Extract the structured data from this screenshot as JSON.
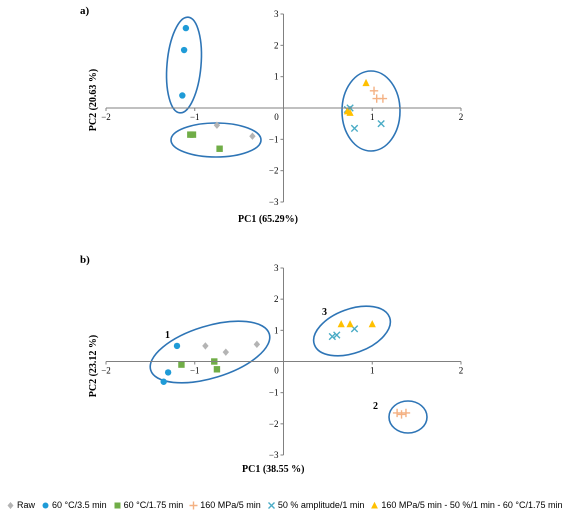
{
  "chart_data": [
    {
      "type": "scatter",
      "panel_label": "a)",
      "xlabel": "PC1 (65.29%)",
      "ylabel": "PC2 (20.63 %)",
      "xlim": [
        -2,
        2
      ],
      "ylim": [
        -3,
        3
      ],
      "x_ticks": [
        "−2",
        "−1",
        "0",
        "1",
        "2"
      ],
      "y_ticks": [
        "3",
        "2",
        "1",
        "0",
        "−1",
        "−2",
        "−3"
      ],
      "series": [
        {
          "name": "Raw",
          "marker": "diamond",
          "color": "#b4b4b4",
          "points": [
            [
              -0.75,
              -0.55
            ],
            [
              -0.35,
              -0.9
            ]
          ]
        },
        {
          "name": "60 °C/3.5 min",
          "marker": "circle",
          "color": "#1f9bd7",
          "points": [
            [
              -1.1,
              2.55
            ],
            [
              -1.12,
              1.85
            ],
            [
              -1.14,
              0.4
            ]
          ]
        },
        {
          "name": "60 °C/1.75 min",
          "marker": "square",
          "color": "#70ad47",
          "points": [
            [
              -1.05,
              -0.85
            ],
            [
              -1.02,
              -0.85
            ],
            [
              -0.72,
              -1.3
            ]
          ]
        },
        {
          "name": "160 MPa/5 min",
          "marker": "plus",
          "color": "#f4b183",
          "points": [
            [
              1.02,
              0.55
            ],
            [
              1.05,
              0.3
            ],
            [
              1.12,
              0.3
            ]
          ]
        },
        {
          "name": "50 % amplitude/1 min",
          "marker": "x",
          "color": "#4bacc6",
          "points": [
            [
              0.72,
              -0.05
            ],
            [
              0.8,
              -0.65
            ],
            [
              1.1,
              -0.5
            ],
            [
              0.75,
              0.0
            ]
          ]
        },
        {
          "name": "160 MPa/5 min - 50 %/1 min - 60 °C/1.75 min",
          "marker": "triangle",
          "color": "#ffc000",
          "points": [
            [
              0.93,
              0.8
            ],
            [
              0.72,
              -0.1
            ],
            [
              0.75,
              -0.15
            ]
          ]
        }
      ]
    },
    {
      "type": "scatter",
      "panel_label": "b)",
      "xlabel": "PC1 (38.55 %)",
      "ylabel": "PC2 (23.12 %)",
      "xlim": [
        -2,
        2
      ],
      "ylim": [
        -3,
        3
      ],
      "x_ticks": [
        "−2",
        "−1",
        "0",
        "1",
        "2"
      ],
      "y_ticks": [
        "3",
        "2",
        "1",
        "0",
        "−1",
        "−2",
        "−3"
      ],
      "group_labels": [
        "1",
        "2",
        "3"
      ],
      "series": [
        {
          "name": "Raw",
          "marker": "diamond",
          "color": "#b4b4b4",
          "points": [
            [
              -0.88,
              0.5
            ],
            [
              -0.65,
              0.3
            ],
            [
              -0.3,
              0.55
            ]
          ]
        },
        {
          "name": "60 °C/3.5 min",
          "marker": "circle",
          "color": "#1f9bd7",
          "points": [
            [
              -1.2,
              0.5
            ],
            [
              -1.3,
              -0.35
            ],
            [
              -1.35,
              -0.65
            ]
          ]
        },
        {
          "name": "60 °C/1.75 min",
          "marker": "square",
          "color": "#70ad47",
          "points": [
            [
              -1.15,
              -0.1
            ],
            [
              -0.78,
              0.0
            ],
            [
              -0.75,
              -0.25
            ]
          ]
        },
        {
          "name": "160 MPa/5 min",
          "marker": "plus",
          "color": "#f4b183",
          "points": [
            [
              1.28,
              -1.65
            ],
            [
              1.33,
              -1.7
            ],
            [
              1.38,
              -1.65
            ]
          ]
        },
        {
          "name": "50 % amplitude/1 min",
          "marker": "x",
          "color": "#4bacc6",
          "points": [
            [
              0.55,
              0.8
            ],
            [
              0.6,
              0.85
            ],
            [
              0.8,
              1.05
            ]
          ]
        },
        {
          "name": "160 MPa/5 min - 50 %/1 min - 60 °C/1.75 min",
          "marker": "triangle",
          "color": "#ffc000",
          "points": [
            [
              0.65,
              1.2
            ],
            [
              0.75,
              1.2
            ],
            [
              1.0,
              1.2
            ]
          ]
        }
      ]
    }
  ],
  "legend": [
    {
      "label": "Raw",
      "marker": "diamond",
      "color": "#b4b4b4"
    },
    {
      "label": "60 °C/3.5 min",
      "marker": "circle",
      "color": "#1f9bd7"
    },
    {
      "label": "60 °C/1.75 min",
      "marker": "square",
      "color": "#70ad47"
    },
    {
      "label": "160 MPa/5 min",
      "marker": "plus",
      "color": "#f4b183"
    },
    {
      "label": "50 % amplitude/1 min",
      "marker": "x",
      "color": "#4bacc6"
    },
    {
      "label": "160 MPa/5 min - 50 %/1 min - 60 °C/1.75 min",
      "marker": "triangle",
      "color": "#ffc000"
    }
  ]
}
